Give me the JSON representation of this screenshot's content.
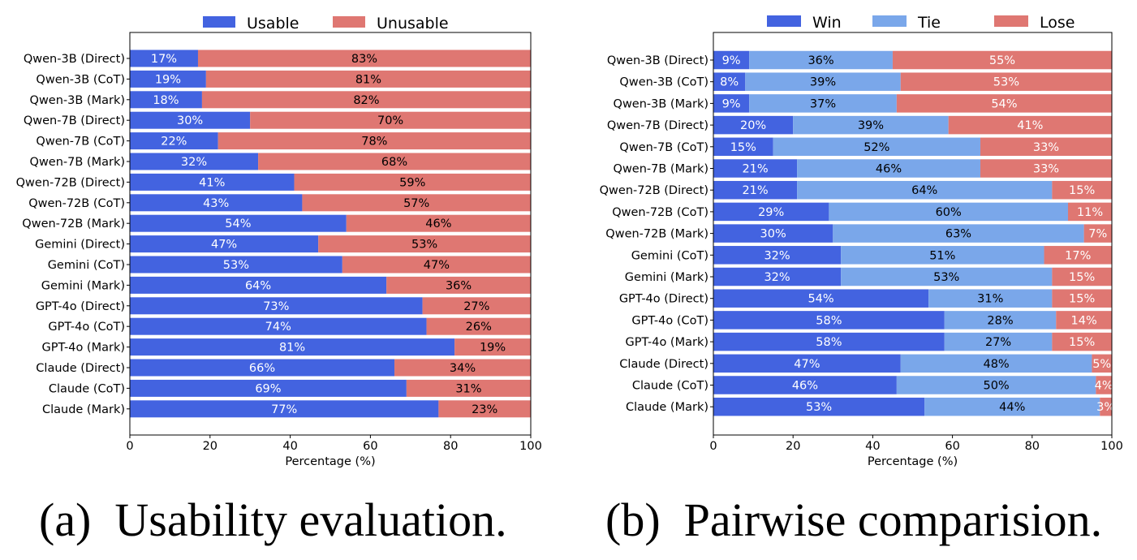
{
  "captions": {
    "left": "(a) Usability evaluation.",
    "right": "(b) Pairwise comparision."
  },
  "chart_data": [
    {
      "type": "bar",
      "orientation": "horizontal",
      "stacked": true,
      "categories": [
        "Qwen-3B (Direct)",
        "Qwen-3B (CoT)",
        "Qwen-3B (Mark)",
        "Qwen-7B (Direct)",
        "Qwen-7B (CoT)",
        "Qwen-7B (Mark)",
        "Qwen-72B (Direct)",
        "Qwen-72B (CoT)",
        "Qwen-72B (Mark)",
        "Gemini (Direct)",
        "Gemini (CoT)",
        "Gemini (Mark)",
        "GPT-4o (Direct)",
        "GPT-4o (CoT)",
        "GPT-4o (Mark)",
        "Claude (Direct)",
        "Claude (CoT)",
        "Claude (Mark)"
      ],
      "series": [
        {
          "name": "Usable",
          "color": "#4363e0",
          "label_color": "#ffffff",
          "values": [
            17,
            19,
            18,
            30,
            22,
            32,
            41,
            43,
            54,
            47,
            53,
            64,
            73,
            74,
            81,
            66,
            69,
            77
          ]
        },
        {
          "name": "Unusable",
          "color": "#df7772",
          "label_color": "#000000",
          "values": [
            83,
            81,
            82,
            70,
            78,
            68,
            59,
            57,
            46,
            53,
            47,
            36,
            27,
            26,
            19,
            34,
            31,
            23
          ]
        }
      ],
      "xlabel": "Percentage (%)",
      "xlim": [
        0,
        100
      ],
      "xticks": [
        0,
        20,
        40,
        60,
        80,
        100
      ],
      "legend": "top-center",
      "grid": false
    },
    {
      "type": "bar",
      "orientation": "horizontal",
      "stacked": true,
      "categories": [
        "Qwen-3B (Direct)",
        "Qwen-3B (CoT)",
        "Qwen-3B (Mark)",
        "Qwen-7B (Direct)",
        "Qwen-7B (CoT)",
        "Qwen-7B (Mark)",
        "Qwen-72B (Direct)",
        "Qwen-72B (CoT)",
        "Qwen-72B (Mark)",
        "Gemini (CoT)",
        "Gemini (Mark)",
        "GPT-4o (Direct)",
        "GPT-4o (CoT)",
        "GPT-4o (Mark)",
        "Claude (Direct)",
        "Claude (CoT)",
        "Claude (Mark)"
      ],
      "series": [
        {
          "name": "Win",
          "color": "#4363e0",
          "label_color": "#ffffff",
          "values": [
            9,
            8,
            9,
            20,
            15,
            21,
            21,
            29,
            30,
            32,
            32,
            54,
            58,
            58,
            47,
            46,
            53
          ]
        },
        {
          "name": "Tie",
          "color": "#7aa7ea",
          "label_color": "#000000",
          "values": [
            36,
            39,
            37,
            39,
            52,
            46,
            64,
            60,
            63,
            51,
            53,
            31,
            28,
            27,
            48,
            50,
            44
          ]
        },
        {
          "name": "Lose",
          "color": "#df7772",
          "label_color": "#ffffff",
          "values": [
            55,
            53,
            54,
            41,
            33,
            33,
            15,
            11,
            7,
            17,
            15,
            15,
            14,
            15,
            5,
            4,
            3
          ]
        }
      ],
      "xlabel": "Percentage (%)",
      "xlim": [
        0,
        100
      ],
      "xticks": [
        0,
        20,
        40,
        60,
        80,
        100
      ],
      "legend": "top-center",
      "grid": false
    }
  ]
}
